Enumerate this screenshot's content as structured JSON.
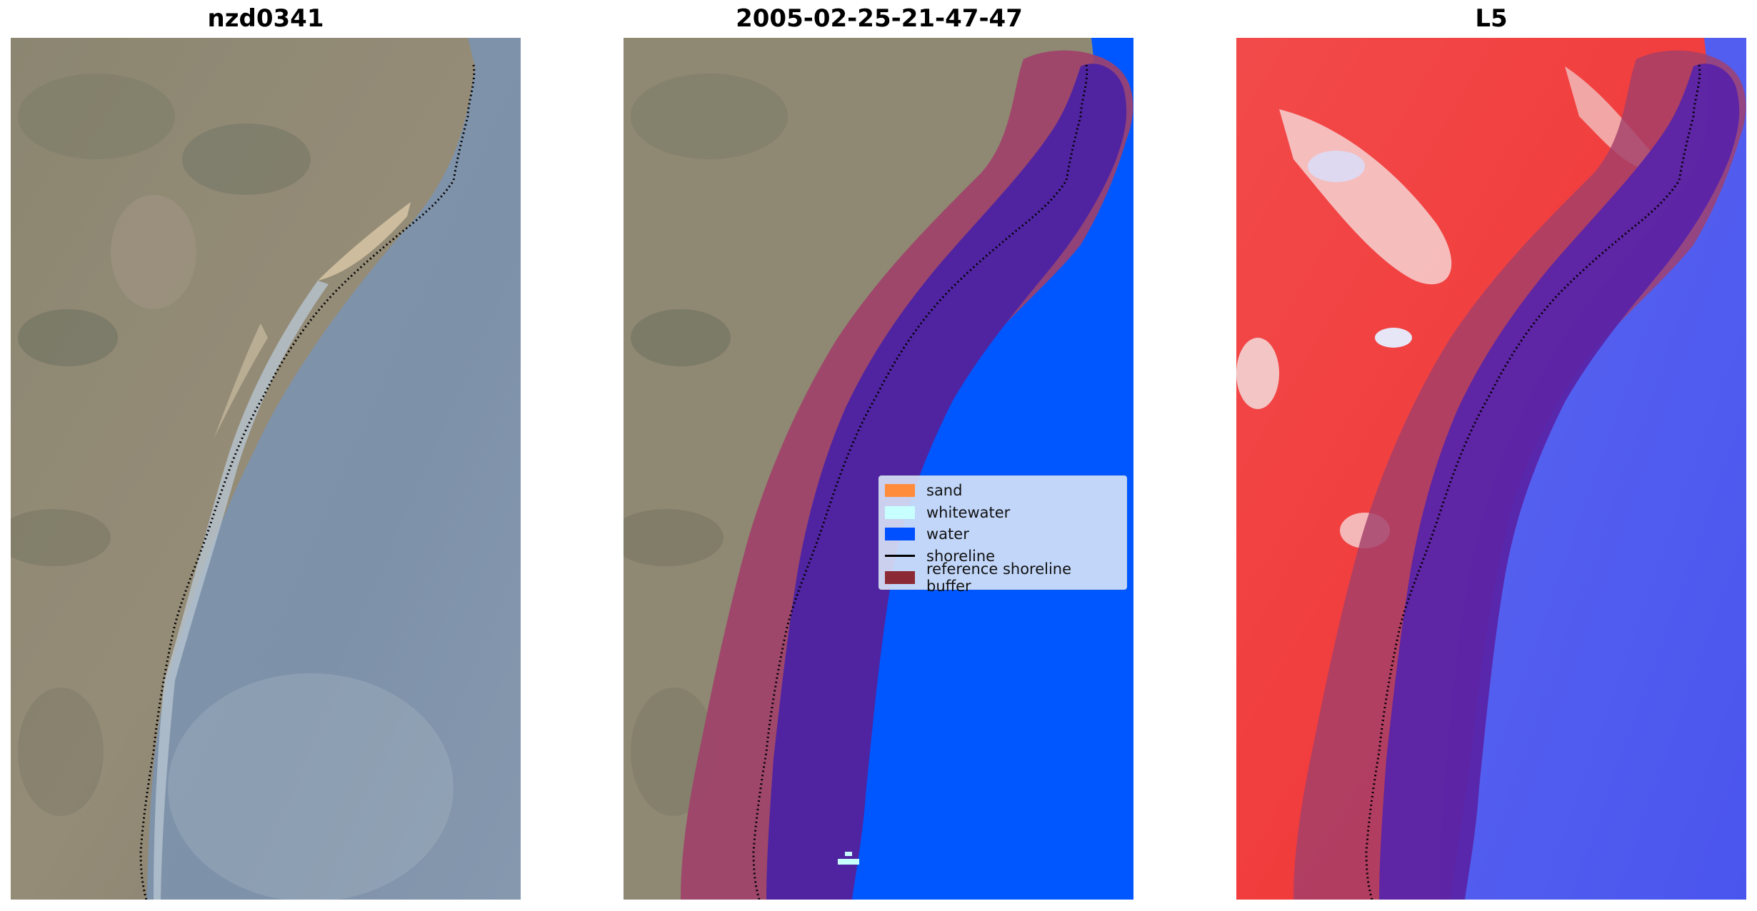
{
  "panels": [
    {
      "title": "nzd0341",
      "kind": "rgb-image"
    },
    {
      "title": "2005-02-25-21-47-47",
      "kind": "classified-image"
    },
    {
      "title": "L5",
      "kind": "index-image"
    }
  ],
  "legend": {
    "items": [
      {
        "label": "sand",
        "color": "#ff8c3c",
        "shape": "patch"
      },
      {
        "label": "whitewater",
        "color": "#c8ffff",
        "shape": "patch"
      },
      {
        "label": "water",
        "color": "#0050ff",
        "shape": "patch"
      },
      {
        "label": "shoreline",
        "color": "#000000",
        "shape": "line"
      },
      {
        "label": "reference shoreline buffer",
        "color": "#8b2a34",
        "shape": "patch"
      }
    ]
  },
  "colors": {
    "land": "#8f8872",
    "ocean_rgb": "#7f93a8",
    "water_class": "#0057ff",
    "buffer": "#a0406a",
    "index_land": "#f53a3a",
    "index_water": "#4a57ef"
  }
}
